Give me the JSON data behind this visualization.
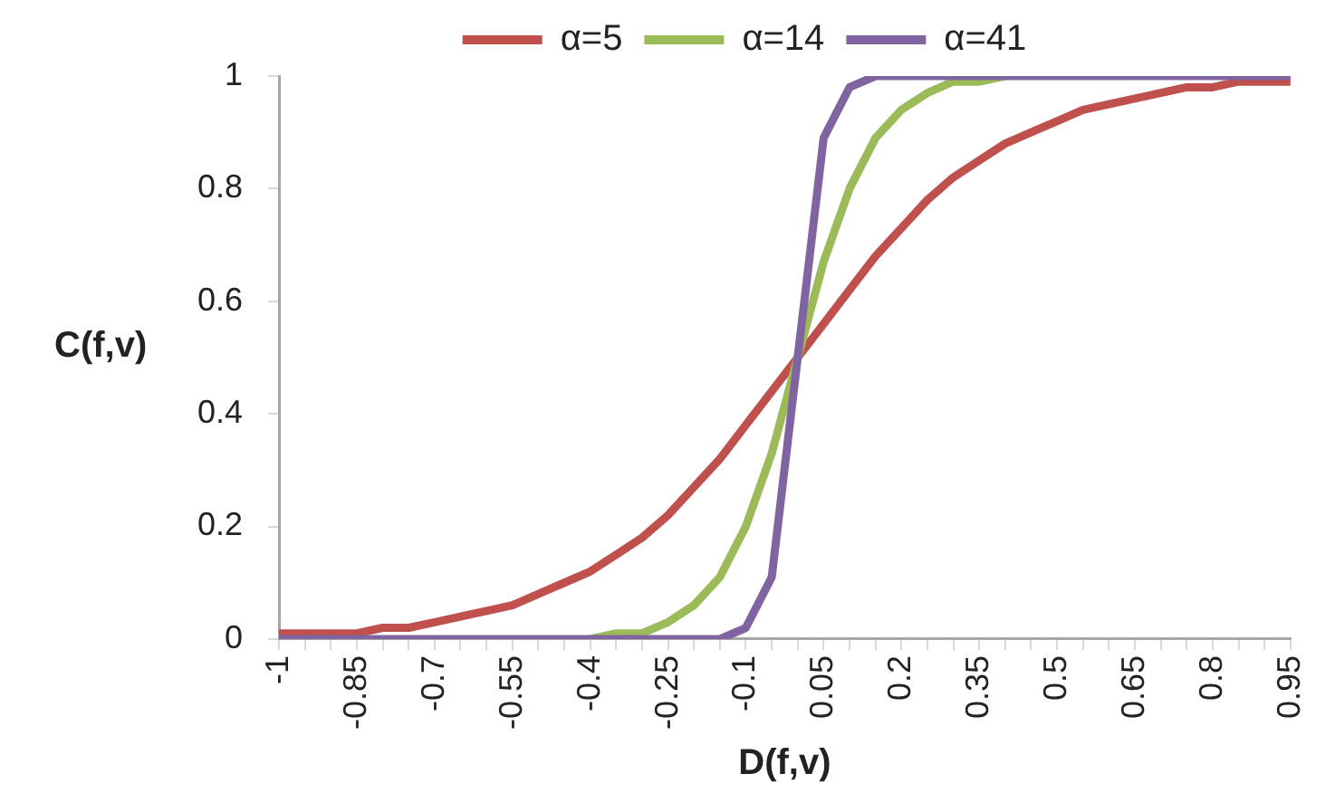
{
  "chart_data": {
    "type": "line",
    "xlabel": "D(f,v)",
    "ylabel": "C(f,v)",
    "categories": [
      "-1",
      null,
      null,
      "-0.85",
      null,
      null,
      "-0.7",
      null,
      null,
      "-0.55",
      null,
      null,
      "-0.4",
      null,
      null,
      "-0.25",
      null,
      null,
      "-0.1",
      null,
      null,
      "0.05",
      null,
      null,
      "0.2",
      null,
      null,
      "0.35",
      null,
      null,
      "0.5",
      null,
      null,
      "0.65",
      null,
      null,
      "0.8",
      null,
      null,
      "0.95"
    ],
    "series": [
      {
        "name": "α=5",
        "color": "#c0504d",
        "values": [
          0.01,
          0.01,
          0.01,
          0.01,
          0.02,
          0.02,
          0.03,
          0.04,
          0.05,
          0.06,
          0.08,
          0.1,
          0.12,
          0.15,
          0.18,
          0.22,
          0.27,
          0.32,
          0.38,
          0.44,
          0.5,
          0.56,
          0.62,
          0.68,
          0.73,
          0.78,
          0.82,
          0.85,
          0.88,
          0.9,
          0.92,
          0.94,
          0.95,
          0.96,
          0.97,
          0.98,
          0.98,
          0.99,
          0.99,
          0.99
        ]
      },
      {
        "name": "α=14",
        "color": "#9bbb59",
        "values": [
          null,
          null,
          null,
          null,
          null,
          null,
          null,
          null,
          null,
          null,
          null,
          null,
          0,
          0.01,
          0.01,
          0.03,
          0.06,
          0.11,
          0.2,
          0.33,
          0.5,
          0.67,
          0.8,
          0.89,
          0.94,
          0.97,
          0.99,
          0.99,
          1,
          null,
          null,
          null,
          null,
          null,
          null,
          null,
          null,
          null,
          null,
          null
        ]
      },
      {
        "name": "α=41",
        "color": "#8064a2",
        "values": [
          0,
          0,
          0,
          0,
          0,
          0,
          0,
          0,
          0,
          0,
          0,
          0,
          0,
          0,
          0,
          0,
          0,
          0,
          0.02,
          0.11,
          0.5,
          0.89,
          0.98,
          1,
          1,
          1,
          1,
          1,
          1,
          1,
          1,
          1,
          1,
          1,
          1,
          1,
          1,
          1,
          1,
          1
        ]
      }
    ],
    "ylim": [
      0,
      1
    ],
    "yticks": [
      0,
      0.2,
      0.4,
      0.6,
      0.8,
      1
    ],
    "grid": false,
    "legend": "top",
    "marker": "none",
    "line_style": "solid"
  }
}
